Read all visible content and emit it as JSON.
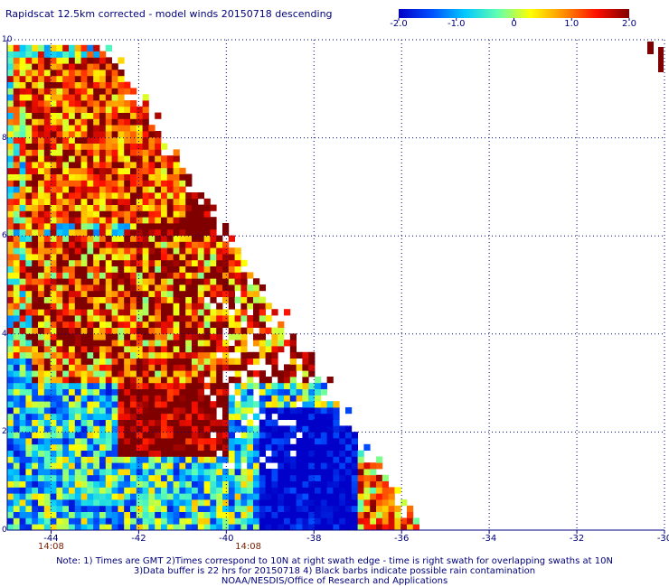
{
  "title": "Rapidscat 12.5km corrected - model winds 20150718 descending",
  "colorbar": {
    "min": -2.0,
    "max": 2.0,
    "tick_labels": [
      "-2.0",
      "-1.0",
      "0",
      "1.0",
      "2.0"
    ],
    "tick_values": [
      -2.0,
      -1.0,
      0,
      1.0,
      2.0
    ],
    "colors": [
      "#0000c8",
      "#0050ff",
      "#00c8ff",
      "#60ffb0",
      "#ffff00",
      "#ff9000",
      "#ff1000",
      "#800000"
    ]
  },
  "map": {
    "lon_min": -45.0,
    "lon_max": -30.0,
    "lat_min": 0,
    "lat_max": 10,
    "x_tick_labels": [
      "-44",
      "-42",
      "-40",
      "-38",
      "-36",
      "-34",
      "-32",
      "-30"
    ],
    "x_tick_values": [
      -44,
      -42,
      -40,
      -38,
      -36,
      -34,
      -32,
      -30
    ],
    "y_tick_labels": [
      "0",
      "2",
      "4",
      "6",
      "8",
      "10"
    ],
    "y_tick_values": [
      0,
      2,
      4,
      6,
      8,
      10
    ],
    "grid_color": "#000080",
    "time_labels": [
      {
        "text": "14:08",
        "lon": -44.0
      },
      {
        "text": "14:08",
        "lon": -39.5
      }
    ]
  },
  "notes": {
    "line1": "Note: 1) Times are GMT 2)Times correspond to 10N at right swath edge - time is right swath for overlapping swaths at 10N",
    "line2": "3)Data buffer is 22 hrs for 20150718 4) Black barbs indicate possible rain contamination",
    "line3": "NOAA/NESDIS/Office of Research and Applications"
  }
}
